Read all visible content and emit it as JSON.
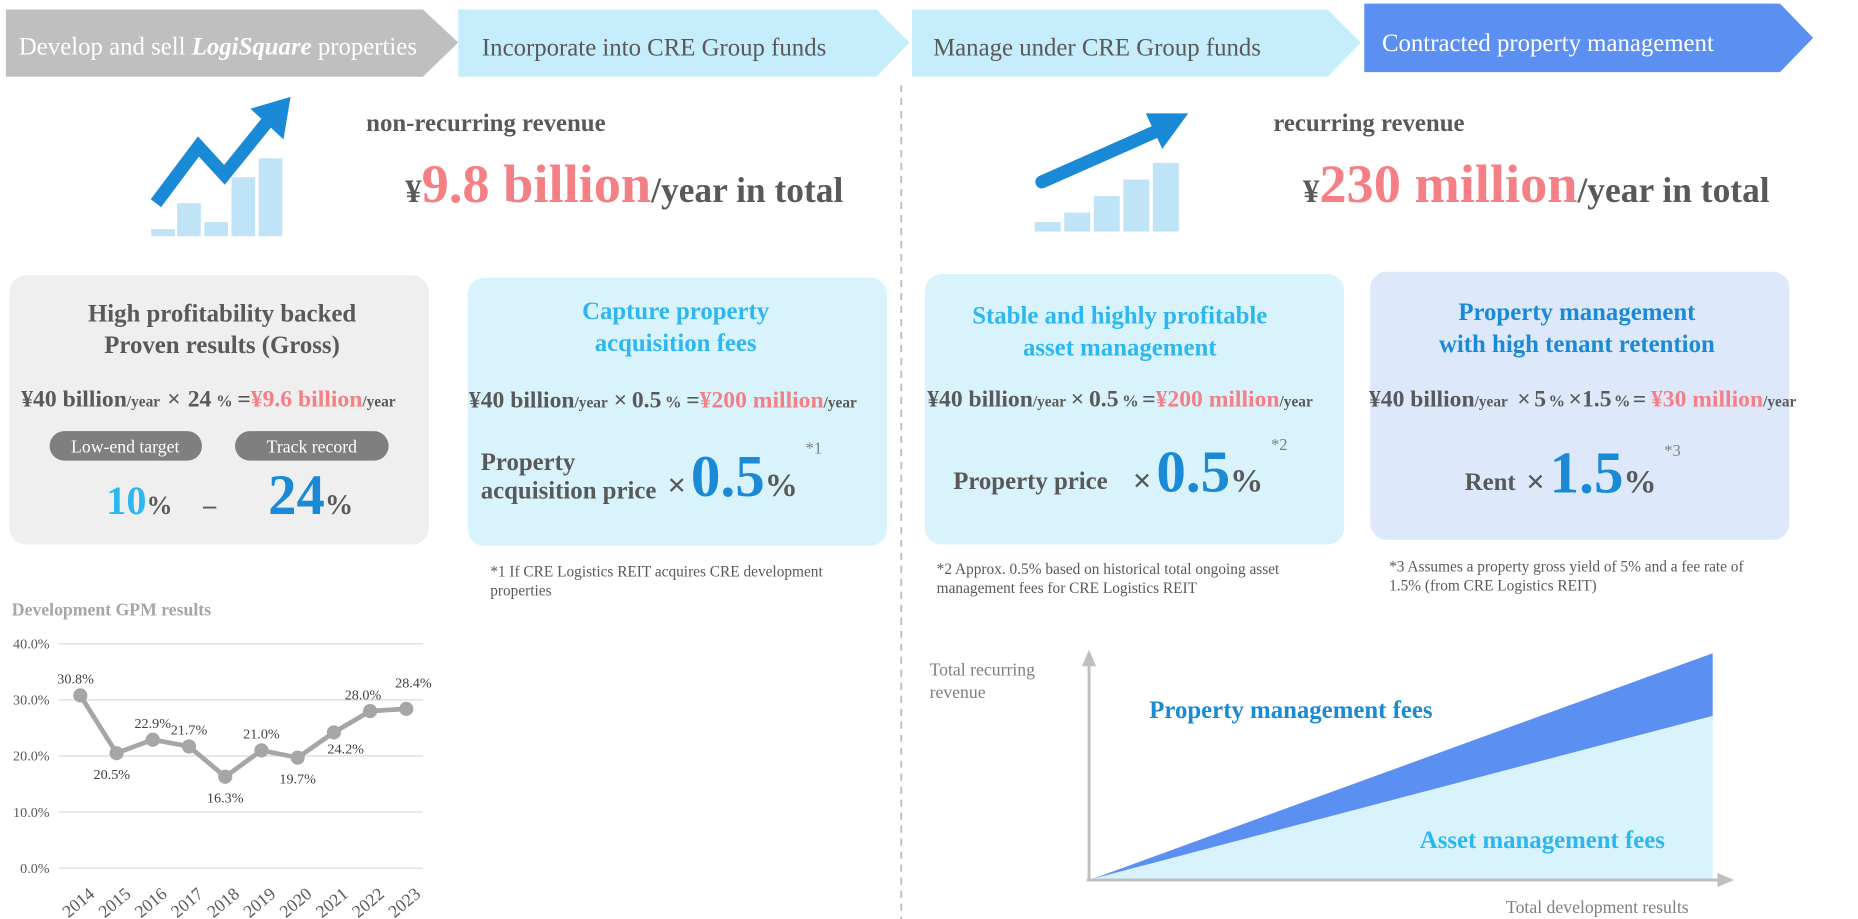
{
  "steps": {
    "first": {
      "pre": "Develop and sell",
      "brand": "LogiSquare",
      "post": "properties"
    },
    "others": [
      "Incorporate into CRE Group funds",
      "Manage under CRE Group funds",
      "Contracted property management"
    ]
  },
  "revenue": [
    {
      "label": "non-recurring revenue",
      "currency": "¥",
      "amount": "9.8 billion",
      "suffix": "/year in total"
    },
    {
      "label": "recurring revenue",
      "currency": "¥",
      "amount": "230 million",
      "suffix": "/year in total"
    }
  ],
  "cards": [
    {
      "title": [
        "High profitability backed",
        "Proven results (Gross)"
      ],
      "formula": [
        "¥40 billion",
        "/year",
        "×",
        "24",
        "%",
        "=",
        "¥9.6 billion",
        "/year"
      ],
      "pills": [
        "Low-end target",
        "Track record"
      ],
      "range": [
        "10",
        "%",
        "–",
        "24",
        "%"
      ]
    },
    {
      "title": [
        "Capture property",
        "acquisition fees"
      ],
      "formula": [
        "¥40 billion",
        "/year",
        "×",
        "0.5",
        "%",
        "=",
        "¥200 million",
        "/year"
      ],
      "basis": [
        "Property",
        "acquisition price"
      ],
      "times": "×",
      "rate": "0.5",
      "unit": "%",
      "note": "*1"
    },
    {
      "title": [
        "Stable and highly profitable",
        "asset management"
      ],
      "formula": [
        "¥40 billion",
        "/year",
        "×",
        "0.5",
        "%",
        "=",
        "¥200 million",
        "/year"
      ],
      "basis": [
        "Property price"
      ],
      "times": "×",
      "rate": "0.5",
      "unit": "%",
      "note": "*2"
    },
    {
      "title": [
        "Property management",
        "with high tenant retention"
      ],
      "formula": [
        "¥40 billion",
        "/year",
        "×",
        "5",
        "%",
        "×",
        "1.5",
        "%",
        "=",
        "¥30 million",
        "/year"
      ],
      "basis": [
        "Rent"
      ],
      "times": "×",
      "rate": "1.5",
      "unit": "%",
      "note": "*3"
    }
  ],
  "footnotes": [
    [
      "*1 If CRE Logistics REIT acquires CRE development",
      "properties"
    ],
    [
      "*2 Approx. 0.5% based on historical total ongoing asset",
      "management fees for CRE Logistics REIT"
    ],
    [
      "*3 Assumes a property gross yield of 5% and a fee rate of",
      "1.5% (from CRE Logistics REIT)"
    ]
  ],
  "diagram": {
    "y_label": [
      "Total recurring",
      "revenue"
    ],
    "x_label": "Total development results",
    "upper": "Property management fees",
    "lower": "Asset management fees"
  },
  "chart_data": {
    "type": "line",
    "title": "Development GPM results",
    "categories": [
      "2014",
      "2015",
      "2016",
      "2017",
      "2018",
      "2019",
      "2020",
      "2021",
      "2022",
      "2023"
    ],
    "values": [
      30.8,
      20.5,
      22.9,
      21.7,
      16.3,
      21.0,
      19.7,
      24.2,
      28.0,
      28.4
    ],
    "value_labels": [
      "30.8%",
      "20.5%",
      "22.9%",
      "21.7%",
      "16.3%",
      "21.0%",
      "19.7%",
      "24.2%",
      "28.0%",
      "28.4%"
    ],
    "color": "#a6a6a6",
    "ylim": [
      0,
      40
    ],
    "yticks": [
      {
        "value": 0,
        "label": "0.0%"
      },
      {
        "value": 10,
        "label": "10.0%"
      },
      {
        "value": 20,
        "label": "20.0%"
      },
      {
        "value": 30,
        "label": "30.0%"
      },
      {
        "value": 40,
        "label": "40.0%"
      }
    ],
    "grid": true
  }
}
